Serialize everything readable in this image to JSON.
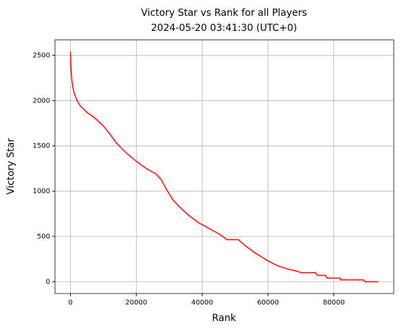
{
  "chart_data": {
    "type": "line",
    "title": "Victory Star vs Rank for all Players",
    "subtitle": "2024-05-20 03:41:30 (UTC+0)",
    "x_label": "Rank",
    "y_label": "Victory Star",
    "x": [
      0,
      200,
      500,
      1000,
      2000,
      3000,
      5000,
      7000,
      10000,
      12000,
      14000,
      17000,
      20000,
      23000,
      26000,
      27500,
      29000,
      31000,
      33000,
      36000,
      39000,
      42000,
      45000,
      47000,
      47500,
      51000,
      53000,
      56000,
      60000,
      63000,
      66000,
      69000,
      70000,
      74500,
      75000,
      77500,
      78000,
      82000,
      82000,
      89000,
      89500,
      93500
    ],
    "series": [
      {
        "name": "Victory Star",
        "color": "#ff0000",
        "values": [
          2540,
          2350,
          2200,
          2100,
          2000,
          1940,
          1870,
          1820,
          1720,
          1630,
          1530,
          1420,
          1330,
          1250,
          1190,
          1130,
          1030,
          910,
          830,
          730,
          650,
          590,
          530,
          480,
          465,
          465,
          400,
          320,
          230,
          175,
          140,
          115,
          100,
          100,
          70,
          70,
          40,
          40,
          20,
          20,
          0,
          0
        ]
      }
    ],
    "xlim": [
      -4700,
      98200
    ],
    "ylim": [
      -130,
      2670
    ],
    "xticks": [
      0,
      20000,
      40000,
      60000,
      80000
    ],
    "yticks": [
      0,
      500,
      1000,
      1500,
      2000,
      2500
    ],
    "grid": true
  }
}
